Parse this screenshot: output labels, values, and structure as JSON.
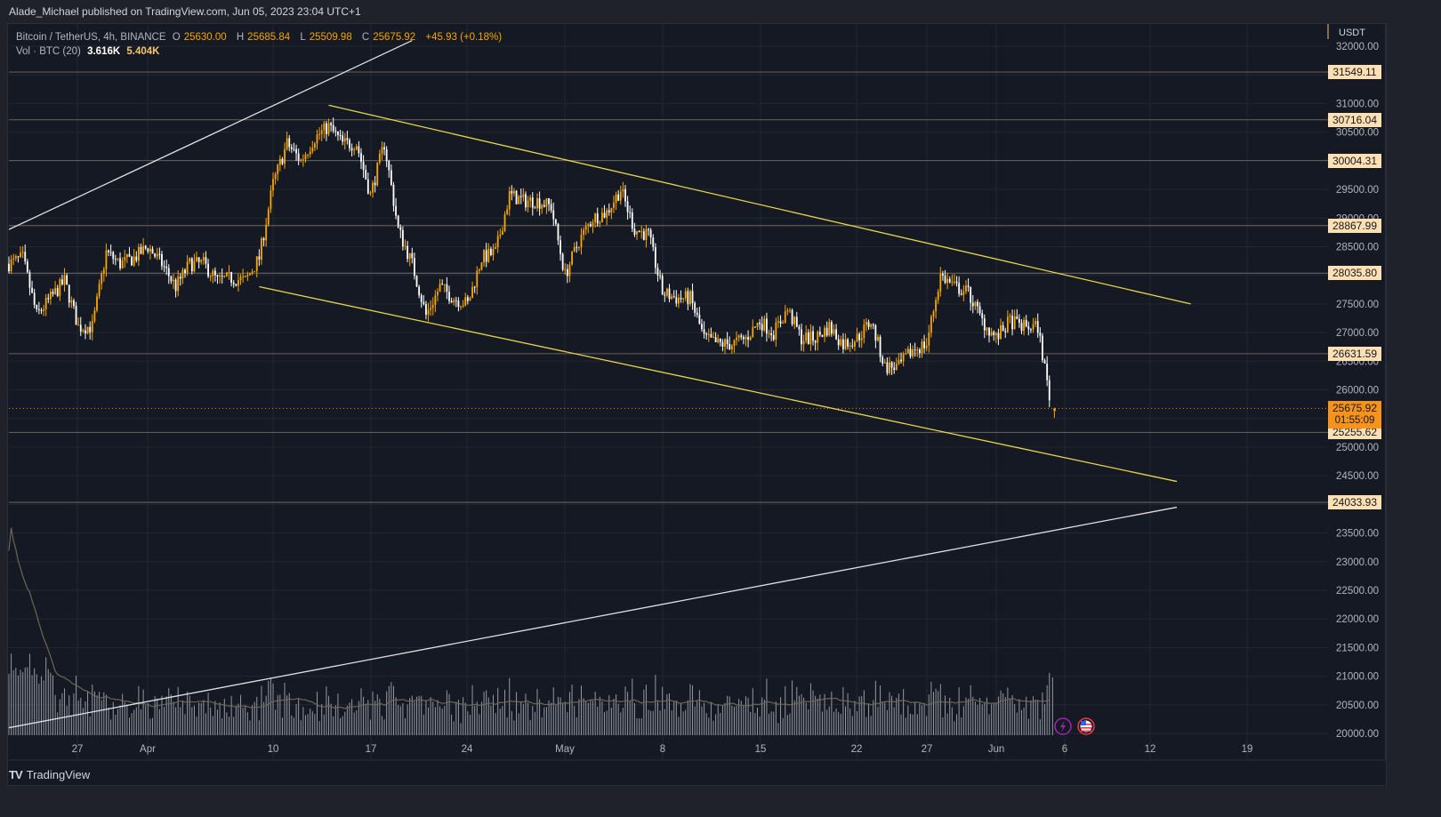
{
  "header": {
    "published": "Alade_Michael published on TradingView.com, Jun 05, 2023 23:04 UTC+1"
  },
  "legend": {
    "symbol": "Bitcoin / TetherUS, 4h, BINANCE",
    "open_label": "O",
    "open": "25630.00",
    "high_label": "H",
    "high": "25685.84",
    "low_label": "L",
    "low": "25509.98",
    "close_label": "C",
    "close": "25675.92",
    "change": "+45.93 (+0.18%)",
    "vol_label": "Vol · BTC (20)",
    "vol": "3.616K",
    "vol_ma": "5.404K"
  },
  "price_axis": {
    "currency": "USDT",
    "ticks": [
      "32000.00",
      "31000.00",
      "30500.00",
      "29500.00",
      "29000.00",
      "28500.00",
      "27500.00",
      "27000.00",
      "26500.00",
      "26000.00",
      "25000.00",
      "24500.00",
      "23500.00",
      "23000.00",
      "22500.00",
      "22000.00",
      "21500.00",
      "21000.00",
      "20500.00",
      "20000.00"
    ]
  },
  "level_tags": [
    "31549.11",
    "30716.04",
    "30004.31",
    "28867.99",
    "28035.80",
    "26631.59",
    "25255.62",
    "24033.93"
  ],
  "current_price": {
    "price": "25675.92",
    "countdown": "01:55:09"
  },
  "time_axis": {
    "labels": [
      "27",
      "Apr",
      "10",
      "17",
      "24",
      "May",
      "8",
      "15",
      "22",
      "27",
      "Jun",
      "6",
      "12",
      "19"
    ]
  },
  "footer": {
    "brand": "TradingView",
    "logo": "TV"
  },
  "event_icons": [
    "lightning-event-icon",
    "us-flag-event-icon"
  ],
  "colors": {
    "up": "#f7a600",
    "down": "#ffffff",
    "trend_yellow": "#e8d44d",
    "trend_white": "#e0e0e0",
    "level": "#5d5b55",
    "current": "#f7931a",
    "grid": "#232734",
    "bg": "#151924"
  },
  "chart_data": {
    "type": "candlestick",
    "title": "Bitcoin / TetherUS, 4h, BINANCE",
    "xlabel": "",
    "ylabel": "USDT",
    "ylim": [
      20000,
      32100
    ],
    "x_range": [
      "2023-03-22",
      "2023-06-24"
    ],
    "grid": true,
    "price_path": [
      {
        "date": "Mar 22",
        "price": 28200
      },
      {
        "date": "Mar 23",
        "price": 28300
      },
      {
        "date": "Mar 24",
        "price": 27300
      },
      {
        "date": "Mar 25",
        "price": 27600
      },
      {
        "date": "Mar 26",
        "price": 27900
      },
      {
        "date": "Mar 27",
        "price": 27100
      },
      {
        "date": "Mar 28",
        "price": 27100
      },
      {
        "date": "Mar 29",
        "price": 28400
      },
      {
        "date": "Mar 30",
        "price": 28200
      },
      {
        "date": "Mar 31",
        "price": 28300
      },
      {
        "date": "Apr 1",
        "price": 28500
      },
      {
        "date": "Apr 2",
        "price": 28200
      },
      {
        "date": "Apr 3",
        "price": 27800
      },
      {
        "date": "Apr 4",
        "price": 28200
      },
      {
        "date": "Apr 5",
        "price": 28200
      },
      {
        "date": "Apr 6",
        "price": 27900
      },
      {
        "date": "Apr 7",
        "price": 27950
      },
      {
        "date": "Apr 8",
        "price": 27900
      },
      {
        "date": "Apr 9",
        "price": 28300
      },
      {
        "date": "Apr 10",
        "price": 29600
      },
      {
        "date": "Apr 11",
        "price": 30300
      },
      {
        "date": "Apr 12",
        "price": 30000
      },
      {
        "date": "Apr 13",
        "price": 30400
      },
      {
        "date": "Apr 14",
        "price": 30600
      },
      {
        "date": "Apr 15",
        "price": 30300
      },
      {
        "date": "Apr 16",
        "price": 30300
      },
      {
        "date": "Apr 17",
        "price": 29400
      },
      {
        "date": "Apr 18",
        "price": 30300
      },
      {
        "date": "Apr 19",
        "price": 28800
      },
      {
        "date": "Apr 20",
        "price": 28200
      },
      {
        "date": "Apr 21",
        "price": 27300
      },
      {
        "date": "Apr 22",
        "price": 27800
      },
      {
        "date": "Apr 23",
        "price": 27600
      },
      {
        "date": "Apr 24",
        "price": 27500
      },
      {
        "date": "Apr 25",
        "price": 28300
      },
      {
        "date": "Apr 26",
        "price": 28400
      },
      {
        "date": "Apr 27",
        "price": 29400
      },
      {
        "date": "Apr 28",
        "price": 29300
      },
      {
        "date": "Apr 29",
        "price": 29300
      },
      {
        "date": "Apr 30",
        "price": 29200
      },
      {
        "date": "May 1",
        "price": 28000
      },
      {
        "date": "May 2",
        "price": 28600
      },
      {
        "date": "May 3",
        "price": 29000
      },
      {
        "date": "May 4",
        "price": 29100
      },
      {
        "date": "May 5",
        "price": 29500
      },
      {
        "date": "May 6",
        "price": 28800
      },
      {
        "date": "May 7",
        "price": 28700
      },
      {
        "date": "May 8",
        "price": 27700
      },
      {
        "date": "May 9",
        "price": 27600
      },
      {
        "date": "May 10",
        "price": 27600
      },
      {
        "date": "May 11",
        "price": 26900
      },
      {
        "date": "May 12",
        "price": 26800
      },
      {
        "date": "May 13",
        "price": 26800
      },
      {
        "date": "May 14",
        "price": 26900
      },
      {
        "date": "May 15",
        "price": 27200
      },
      {
        "date": "May 16",
        "price": 27000
      },
      {
        "date": "May 17",
        "price": 27400
      },
      {
        "date": "May 18",
        "price": 26900
      },
      {
        "date": "May 19",
        "price": 26900
      },
      {
        "date": "May 20",
        "price": 27100
      },
      {
        "date": "May 21",
        "price": 26800
      },
      {
        "date": "May 22",
        "price": 26900
      },
      {
        "date": "May 23",
        "price": 27200
      },
      {
        "date": "May 24",
        "price": 26400
      },
      {
        "date": "May 25",
        "price": 26400
      },
      {
        "date": "May 26",
        "price": 26700
      },
      {
        "date": "May 27",
        "price": 26800
      },
      {
        "date": "May 28",
        "price": 28000
      },
      {
        "date": "May 29",
        "price": 27800
      },
      {
        "date": "May 30",
        "price": 27700
      },
      {
        "date": "May 31",
        "price": 27200
      },
      {
        "date": "Jun 1",
        "price": 26900
      },
      {
        "date": "Jun 2",
        "price": 27200
      },
      {
        "date": "Jun 3",
        "price": 27100
      },
      {
        "date": "Jun 4",
        "price": 27100
      },
      {
        "date": "Jun 5",
        "price": 25650
      }
    ],
    "horizontal_levels": [
      31549.11,
      30716.04,
      30004.31,
      28867.99,
      28035.8,
      26631.59,
      25255.62,
      24033.93
    ],
    "trendlines": [
      {
        "name": "descending-channel-top",
        "color": "yellow",
        "from": {
          "date": "Apr 14",
          "price": 30970
        },
        "to": {
          "date": "Jun 15",
          "price": 27500
        }
      },
      {
        "name": "descending-channel-bottom",
        "color": "yellow",
        "from": {
          "date": "Apr 9",
          "price": 27800
        },
        "to": {
          "date": "Jun 14",
          "price": 24400
        }
      },
      {
        "name": "rising-upper",
        "color": "white",
        "from": {
          "date": "Mar 22",
          "price": 28800
        },
        "to": {
          "date": "Apr 20",
          "price": 32100
        }
      },
      {
        "name": "rising-lower",
        "color": "white",
        "from": {
          "date": "Mar 22",
          "price": 20100
        },
        "to": {
          "date": "Jun 14",
          "price": 23950
        }
      }
    ],
    "volume": {
      "ma_period": 20,
      "last": 3.616,
      "ma": 5.404,
      "unit": "K BTC"
    }
  }
}
